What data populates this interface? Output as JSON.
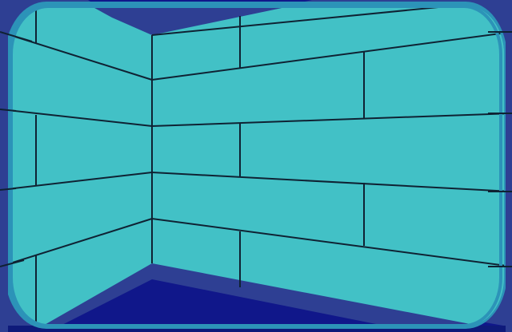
{
  "scene": {
    "type": "first-person dungeon corridor view",
    "colors": {
      "background": "#0e1a7a",
      "frame": "#2e3f93",
      "vignette": "#2c93b8",
      "wall": "#42c1c6",
      "mortar": "#0f2233",
      "wall_edge_highlight": "#65e0e6",
      "ceiling_floor": "#10178a"
    }
  }
}
